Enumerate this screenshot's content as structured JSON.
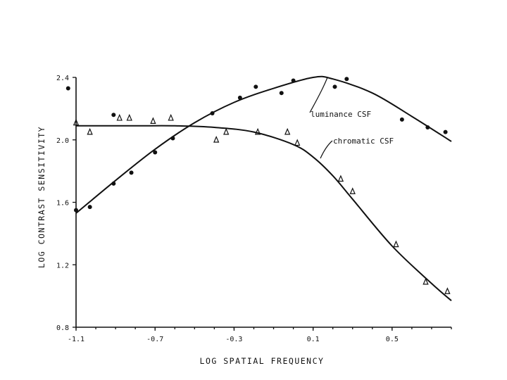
{
  "chart_data": {
    "type": "scatter",
    "xlabel": "LOG SPATIAL FREQUENCY",
    "ylabel": "LOG CONTRAST SENSITIVITY",
    "xlim": [
      -1.1,
      0.8
    ],
    "ylim": [
      0.8,
      2.4
    ],
    "xticks": [
      "-1.1",
      "-0.7",
      "-0.3",
      "0.1",
      "0.5"
    ],
    "xtick_values": [
      -1.1,
      -0.7,
      -0.3,
      0.1,
      0.5
    ],
    "yticks": [
      "0.8",
      "1.2",
      "1.6",
      "2.0",
      "2.4"
    ],
    "ytick_values": [
      0.8,
      1.2,
      1.6,
      2.0,
      2.4
    ],
    "series": [
      {
        "name": "luminance CSF",
        "marker": "dot",
        "points": [
          [
            -1.1,
            1.55
          ],
          [
            -1.03,
            1.57
          ],
          [
            -0.91,
            1.72
          ],
          [
            -0.82,
            1.79
          ],
          [
            -0.7,
            1.92
          ],
          [
            -0.61,
            2.01
          ],
          [
            -0.41,
            2.17
          ],
          [
            -0.27,
            2.27
          ],
          [
            -0.19,
            2.34
          ],
          [
            -0.06,
            2.3
          ],
          [
            0.0,
            2.38
          ],
          [
            0.27,
            2.39
          ],
          [
            0.21,
            2.34
          ],
          [
            0.55,
            2.13
          ],
          [
            0.68,
            2.08
          ],
          [
            0.77,
            2.05
          ],
          [
            -1.14,
            2.33
          ],
          [
            -0.91,
            2.16
          ]
        ],
        "curve": [
          [
            -1.1,
            1.53
          ],
          [
            -0.9,
            1.74
          ],
          [
            -0.7,
            1.94
          ],
          [
            -0.5,
            2.11
          ],
          [
            -0.3,
            2.24
          ],
          [
            -0.1,
            2.33
          ],
          [
            0.1,
            2.4
          ],
          [
            0.2,
            2.39
          ],
          [
            0.4,
            2.3
          ],
          [
            0.6,
            2.15
          ],
          [
            0.8,
            1.99
          ]
        ]
      },
      {
        "name": "chromatic CSF",
        "marker": "triangle",
        "points": [
          [
            -1.1,
            2.11
          ],
          [
            -1.03,
            2.05
          ],
          [
            -0.88,
            2.14
          ],
          [
            -0.83,
            2.14
          ],
          [
            -0.71,
            2.12
          ],
          [
            -0.62,
            2.14
          ],
          [
            -0.39,
            2.0
          ],
          [
            -0.34,
            2.05
          ],
          [
            -0.18,
            2.05
          ],
          [
            -0.03,
            2.05
          ],
          [
            0.02,
            1.98
          ],
          [
            0.24,
            1.75
          ],
          [
            0.3,
            1.67
          ],
          [
            0.52,
            1.33
          ],
          [
            0.67,
            1.09
          ],
          [
            0.78,
            1.03
          ]
        ],
        "curve": [
          [
            -1.1,
            2.09
          ],
          [
            -0.8,
            2.09
          ],
          [
            -0.6,
            2.09
          ],
          [
            -0.4,
            2.08
          ],
          [
            -0.2,
            2.05
          ],
          [
            0.0,
            1.97
          ],
          [
            0.1,
            1.89
          ],
          [
            0.2,
            1.77
          ],
          [
            0.3,
            1.62
          ],
          [
            0.5,
            1.32
          ],
          [
            0.7,
            1.08
          ],
          [
            0.8,
            0.97
          ]
        ]
      }
    ],
    "annotations": [
      {
        "text": "luminance CSF",
        "series": "luminance CSF"
      },
      {
        "text": "chromatic CSF",
        "series": "chromatic CSF"
      }
    ]
  }
}
